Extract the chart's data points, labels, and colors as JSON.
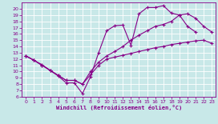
{
  "xlabel": "Windchill (Refroidissement éolien,°C)",
  "xlim": [
    -0.5,
    23.5
  ],
  "ylim": [
    6,
    21
  ],
  "xticks": [
    0,
    1,
    2,
    3,
    4,
    5,
    6,
    7,
    8,
    9,
    10,
    11,
    12,
    13,
    14,
    15,
    16,
    17,
    18,
    19,
    20,
    21,
    22,
    23
  ],
  "yticks": [
    6,
    7,
    8,
    9,
    10,
    11,
    12,
    13,
    14,
    15,
    16,
    17,
    18,
    19,
    20
  ],
  "bg_color": "#c8e8e8",
  "grid_color": "#ffffff",
  "line_color": "#880088",
  "lines": [
    {
      "x": [
        0,
        1,
        2,
        3,
        4,
        5,
        6,
        7,
        8,
        9,
        10,
        11,
        12,
        13,
        14,
        15,
        16,
        17,
        18,
        19,
        20,
        21
      ],
      "y": [
        12.5,
        11.8,
        11.1,
        10.2,
        9.3,
        8.2,
        8.2,
        6.5,
        9.2,
        13.0,
        16.5,
        17.3,
        17.4,
        14.2,
        19.2,
        20.2,
        20.2,
        20.5,
        19.3,
        19.0,
        17.2,
        16.3
      ]
    },
    {
      "x": [
        0,
        1,
        2,
        3,
        4,
        5,
        6,
        7,
        8,
        9,
        10,
        11,
        12,
        13,
        14,
        15,
        16,
        17,
        18,
        19,
        20,
        21,
        22,
        23
      ],
      "y": [
        12.5,
        11.8,
        11.0,
        10.2,
        9.4,
        8.6,
        8.6,
        8.0,
        9.5,
        11.0,
        12.0,
        12.3,
        12.6,
        12.9,
        13.2,
        13.5,
        13.8,
        14.0,
        14.3,
        14.5,
        14.7,
        14.9,
        15.0,
        14.5
      ]
    },
    {
      "x": [
        0,
        1,
        2,
        3,
        4,
        5,
        6,
        7,
        8,
        9,
        10,
        11,
        12,
        13,
        14,
        15,
        16,
        17,
        18,
        19,
        20,
        21,
        22,
        23
      ],
      "y": [
        12.5,
        11.8,
        11.0,
        10.2,
        9.4,
        8.6,
        8.6,
        8.0,
        10.0,
        11.5,
        12.5,
        13.2,
        14.0,
        15.0,
        15.8,
        16.5,
        17.2,
        17.5,
        18.0,
        19.0,
        19.2,
        18.5,
        17.2,
        16.3
      ]
    }
  ]
}
